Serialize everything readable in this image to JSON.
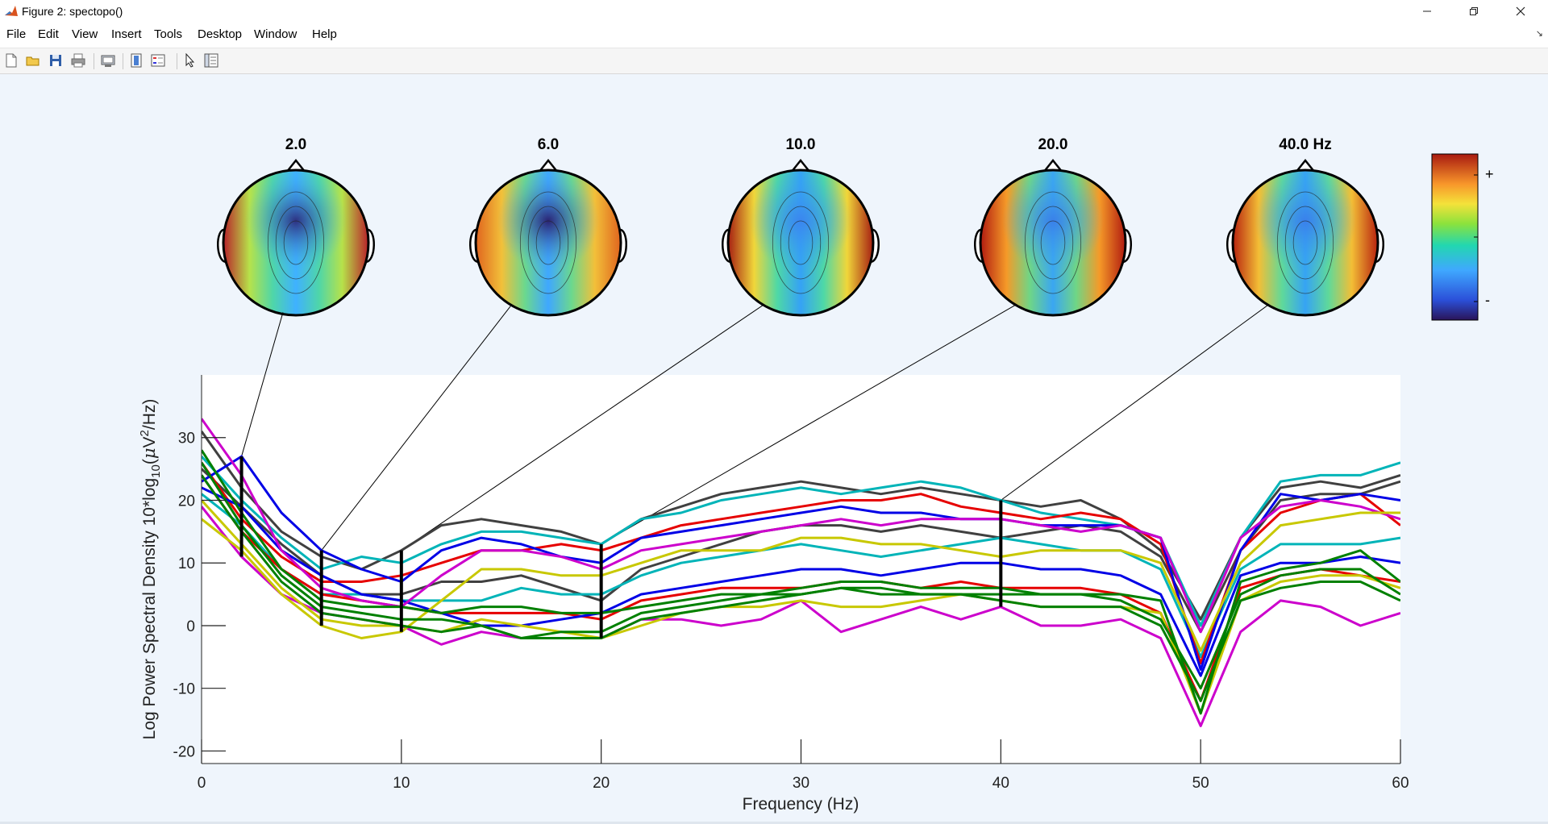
{
  "window": {
    "title": "Figure 2: spectopo()",
    "app_icon": "matlab-logo-icon",
    "controls": [
      "minimize-icon",
      "restore-icon",
      "close-icon"
    ]
  },
  "menu": {
    "items": [
      "File",
      "Edit",
      "View",
      "Insert",
      "Tools",
      "Desktop",
      "Window",
      "Help"
    ]
  },
  "toolbar": {
    "icons": [
      "new-figure-icon",
      "open-file-icon",
      "save-icon",
      "print-icon",
      "link-plot-icon",
      "insert-colorbar-icon",
      "insert-legend-icon",
      "edit-plot-arrow-icon",
      "property-inspector-icon"
    ]
  },
  "colorbar": {
    "plus_label": "+",
    "minus_label": "-"
  },
  "topomaps": [
    {
      "title": "2.0",
      "freq": 2
    },
    {
      "title": "6.0",
      "freq": 6
    },
    {
      "title": "10.0",
      "freq": 10
    },
    {
      "title": "20.0",
      "freq": 20
    },
    {
      "title": "40.0 Hz",
      "freq": 40
    }
  ],
  "chart_data": {
    "type": "line",
    "xlabel": "Frequency (Hz)",
    "ylabel_main": "Log Power Spectral Density 10*log",
    "ylabel_sub": "10",
    "ylabel_unit_pre": "(",
    "ylabel_mu": "μ",
    "ylabel_unit_mid": "V",
    "ylabel_sup": "2",
    "ylabel_unit_post": "/Hz)",
    "xlim": [
      0,
      60
    ],
    "ylim": [
      -22,
      40
    ],
    "x_ticks": [
      0,
      10,
      20,
      30,
      40,
      50,
      60
    ],
    "y_ticks": [
      -20,
      -10,
      0,
      10,
      20,
      30
    ],
    "x_tick_labels": [
      "0",
      "10",
      "20",
      "30",
      "40",
      "50",
      "60"
    ],
    "y_tick_labels": [
      "-20",
      "-10",
      "0",
      "10",
      "20",
      "30"
    ],
    "grid": false,
    "marker_frequencies": [
      2,
      6,
      10,
      20,
      40
    ],
    "x": [
      0,
      2,
      4,
      6,
      8,
      10,
      12,
      14,
      16,
      18,
      20,
      22,
      24,
      26,
      28,
      30,
      32,
      34,
      36,
      38,
      40,
      42,
      44,
      46,
      48,
      50,
      52,
      54,
      56,
      58,
      60
    ],
    "series": [
      {
        "color": "#404040",
        "values": [
          31,
          22,
          15,
          11,
          9,
          12,
          16,
          17,
          16,
          15,
          13,
          17,
          19,
          21,
          22,
          23,
          22,
          21,
          22,
          21,
          20,
          19,
          20,
          17,
          12,
          1,
          14,
          22,
          23,
          22,
          24
        ]
      },
      {
        "color": "#404040",
        "values": [
          25,
          19,
          13,
          8,
          5,
          5,
          7,
          7,
          8,
          6,
          4,
          9,
          11,
          13,
          15,
          16,
          16,
          15,
          16,
          15,
          14,
          15,
          16,
          15,
          11,
          -1,
          12,
          20,
          21,
          21,
          23
        ]
      },
      {
        "color": "#00b4b8",
        "values": [
          27,
          20,
          14,
          9,
          11,
          10,
          13,
          15,
          15,
          14,
          13,
          17,
          18,
          20,
          21,
          22,
          21,
          22,
          23,
          22,
          20,
          18,
          17,
          16,
          14,
          0,
          14,
          23,
          24,
          24,
          26
        ]
      },
      {
        "color": "#00b4b8",
        "values": [
          21,
          16,
          9,
          5,
          5,
          4,
          4,
          4,
          6,
          5,
          5,
          8,
          10,
          11,
          12,
          13,
          12,
          11,
          12,
          13,
          14,
          13,
          12,
          12,
          9,
          -5,
          9,
          13,
          13,
          13,
          14
        ]
      },
      {
        "color": "#e60000",
        "values": [
          26,
          17,
          11,
          7,
          7,
          8,
          10,
          12,
          12,
          13,
          12,
          14,
          16,
          17,
          18,
          19,
          20,
          20,
          21,
          19,
          18,
          17,
          18,
          17,
          13,
          -6,
          12,
          18,
          20,
          21,
          16
        ]
      },
      {
        "color": "#e60000",
        "values": [
          24,
          15,
          9,
          5,
          4,
          3,
          2,
          2,
          2,
          2,
          1,
          4,
          5,
          6,
          6,
          6,
          7,
          7,
          6,
          7,
          6,
          6,
          6,
          5,
          2,
          -12,
          6,
          8,
          9,
          8,
          7
        ]
      },
      {
        "color": "#0000e6",
        "values": [
          23,
          27,
          18,
          12,
          9,
          7,
          12,
          14,
          13,
          11,
          10,
          14,
          15,
          16,
          17,
          18,
          19,
          18,
          18,
          17,
          17,
          16,
          16,
          16,
          14,
          -7,
          12,
          21,
          20,
          21,
          20
        ]
      },
      {
        "color": "#0000e6",
        "values": [
          22,
          19,
          12,
          8,
          5,
          4,
          2,
          0,
          0,
          1,
          2,
          5,
          6,
          7,
          8,
          9,
          9,
          8,
          9,
          10,
          10,
          9,
          9,
          8,
          5,
          -8,
          8,
          10,
          10,
          11,
          10
        ]
      },
      {
        "color": "#cc00cc",
        "values": [
          33,
          24,
          12,
          6,
          4,
          3,
          8,
          12,
          12,
          11,
          9,
          12,
          13,
          14,
          15,
          16,
          17,
          16,
          17,
          17,
          17,
          16,
          15,
          16,
          14,
          -1,
          14,
          19,
          20,
          19,
          17
        ]
      },
      {
        "color": "#cc00cc",
        "values": [
          19,
          11,
          5,
          2,
          1,
          0,
          -3,
          -1,
          -2,
          -2,
          -2,
          1,
          1,
          0,
          1,
          4,
          -1,
          1,
          3,
          1,
          3,
          0,
          0,
          1,
          -2,
          -16,
          -1,
          4,
          3,
          0,
          2
        ]
      },
      {
        "color": "#c8c800",
        "values": [
          17,
          12,
          5,
          0,
          -2,
          -1,
          4,
          9,
          9,
          8,
          8,
          10,
          12,
          12,
          12,
          14,
          14,
          13,
          13,
          12,
          11,
          12,
          12,
          12,
          10,
          -4,
          10,
          16,
          17,
          18,
          18
        ]
      },
      {
        "color": "#c8c800",
        "values": [
          20,
          13,
          6,
          1,
          0,
          0,
          -1,
          1,
          0,
          -1,
          -2,
          0,
          2,
          3,
          3,
          4,
          3,
          3,
          4,
          5,
          4,
          3,
          3,
          3,
          2,
          -14,
          4,
          7,
          8,
          8,
          6
        ]
      },
      {
        "color": "#008000",
        "values": [
          28,
          18,
          9,
          4,
          3,
          3,
          2,
          3,
          3,
          2,
          2,
          3,
          4,
          5,
          5,
          5,
          6,
          5,
          5,
          5,
          5,
          5,
          5,
          5,
          4,
          -14,
          7,
          9,
          10,
          12,
          7
        ]
      },
      {
        "color": "#008000",
        "values": [
          26,
          16,
          8,
          3,
          2,
          1,
          1,
          0,
          -2,
          -1,
          -1,
          2,
          3,
          4,
          5,
          6,
          7,
          7,
          6,
          6,
          6,
          5,
          5,
          4,
          1,
          -10,
          5,
          8,
          9,
          9,
          5
        ]
      },
      {
        "color": "#008000",
        "values": [
          24,
          15,
          7,
          2,
          1,
          0,
          -1,
          0,
          -2,
          -2,
          -2,
          1,
          2,
          3,
          4,
          5,
          6,
          6,
          5,
          5,
          4,
          3,
          3,
          3,
          0,
          -12,
          4,
          6,
          7,
          7,
          4
        ]
      }
    ]
  }
}
